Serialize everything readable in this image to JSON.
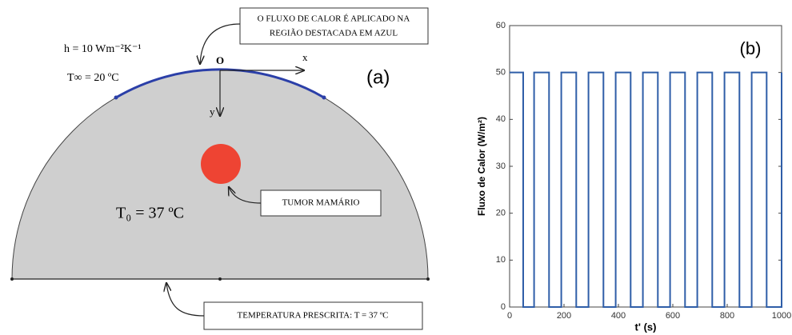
{
  "diagram": {
    "label": "(a)",
    "h": "h = 10 Wm⁻²K⁻¹",
    "t_inf": "T∞ = 20 ºC",
    "origin": "O",
    "x_axis": "x",
    "y_axis": "y",
    "t0": "T₀ = 37 ºC",
    "notes": {
      "flux": [
        "O FLUXO DE CALOR É APLICADO NA",
        "REGIÃO DESTACADA EM AZUL"
      ],
      "tumor": "TUMOR MAMÁRIO",
      "boundary": "TEMPERATURA PRESCRITA: T = 37  ºC"
    }
  },
  "chart_data": {
    "type": "line",
    "annotation": "(b)",
    "x_label": "t' (s)",
    "y_label": "Fluxo de Calor (W/m²)",
    "x": [
      0,
      50,
      50,
      90,
      90,
      145,
      145,
      190,
      190,
      245,
      245,
      290,
      290,
      345,
      345,
      390,
      390,
      445,
      445,
      490,
      490,
      545,
      545,
      590,
      590,
      645,
      645,
      690,
      690,
      745,
      745,
      790,
      790,
      845,
      845,
      890,
      890,
      945,
      945,
      1000,
      1000
    ],
    "values": [
      50,
      50,
      0,
      0,
      50,
      50,
      0,
      0,
      50,
      50,
      0,
      0,
      50,
      50,
      0,
      0,
      50,
      50,
      0,
      0,
      50,
      50,
      0,
      0,
      50,
      50,
      0,
      0,
      50,
      50,
      0,
      0,
      50,
      50,
      0,
      0,
      50,
      50,
      0,
      0,
      50
    ],
    "color": "#2f5ea8",
    "xlim": [
      0,
      1000
    ],
    "ylim": [
      0,
      60
    ],
    "xticks": [
      0,
      200,
      400,
      600,
      800,
      1000
    ],
    "yticks": [
      0,
      10,
      20,
      30,
      40,
      50,
      60
    ]
  }
}
